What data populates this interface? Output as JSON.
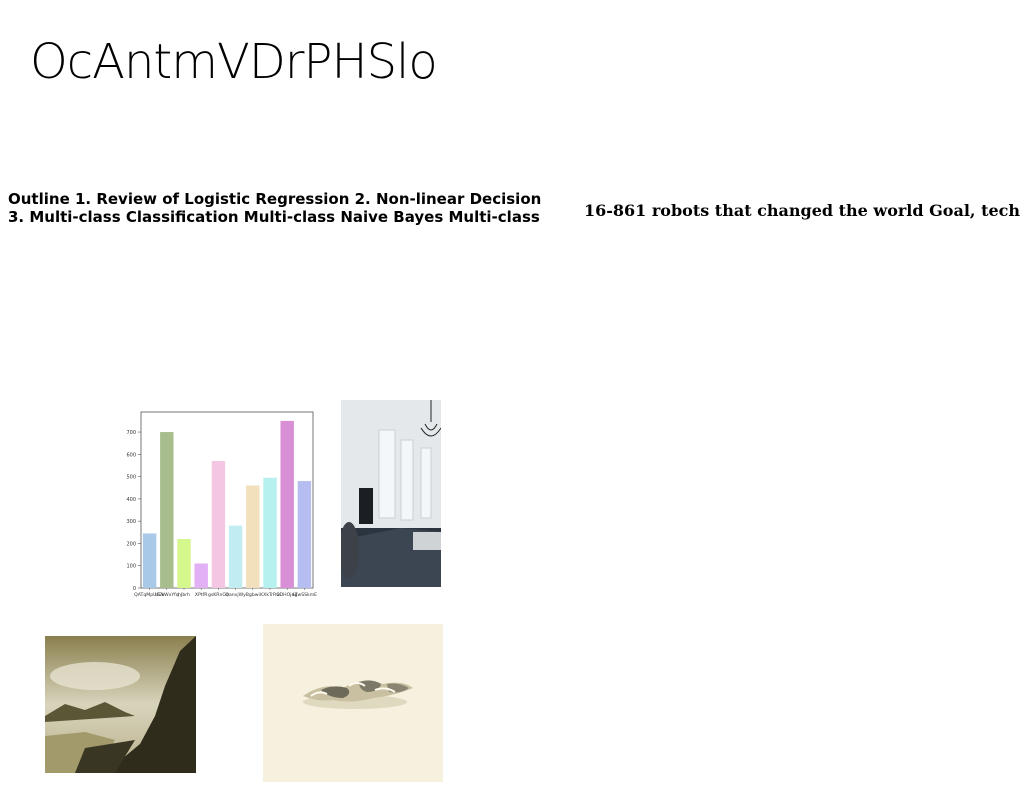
{
  "slide": {
    "title": "OcAntmVDrPHSlo",
    "outline_line1": "Outline 1. Review of Logistic Regression 2. Non-linear Decision",
    "outline_line2": "3. Multi-class Classification Multi-class Naive Bayes Multi-class",
    "side_text": "16-861 robots that changed the world Goal, tech"
  },
  "chart_data": {
    "type": "bar",
    "categories": [
      "QATqMpUGAr",
      "UCkWxYfq",
      "hJbrh",
      "XPtfR",
      "gsKRnGa",
      "QanvjWy",
      "Bgbwi",
      "KXkTrRO",
      "xDHOjdZ",
      "agwSSkmE"
    ],
    "values": [
      245,
      700,
      220,
      110,
      570,
      280,
      460,
      495,
      750,
      480
    ],
    "colors": [
      "#a9c9e8",
      "#a8bd8c",
      "#d6f78c",
      "#e1b0f5",
      "#f5c6e3",
      "#c1edf2",
      "#f1e0bb",
      "#b6f1ef",
      "#d98fd5",
      "#b5bdf1"
    ],
    "yticks": [
      0,
      100,
      200,
      300,
      400,
      500,
      600,
      700
    ],
    "ylim": [
      0,
      790
    ],
    "grid": false
  },
  "images": {
    "room": "room-photo",
    "mountain": "mountain-photo",
    "paper": "paper-clips-photo"
  }
}
